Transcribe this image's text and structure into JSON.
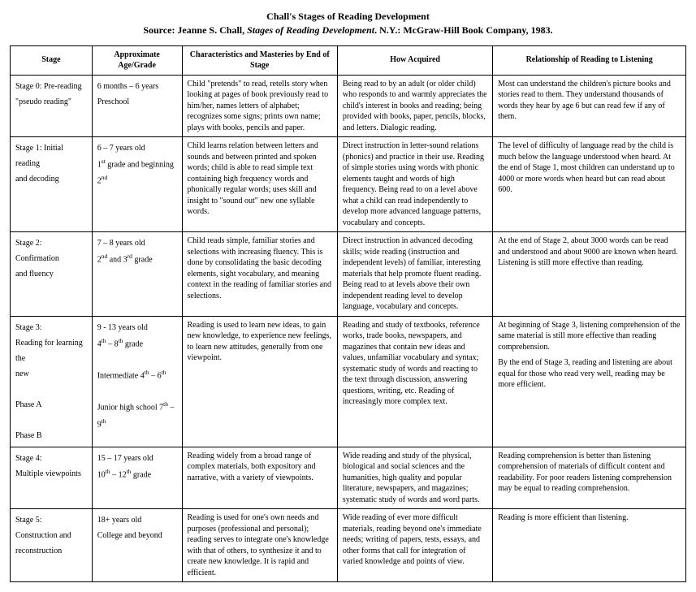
{
  "title": {
    "line1": "Chall's Stages of Reading Development",
    "line2_prefix": "Source: Jeanne S. Chall, ",
    "line2_italic": "Stages of Reading Development",
    "line2_suffix": ". N.Y.: McGraw-Hill Book Company, 1983."
  },
  "headers": {
    "stage": "Stage",
    "age": "Approximate Age/Grade",
    "characteristics": "Characteristics and Masteries by End of Stage",
    "how": "How Acquired",
    "relationship": "Relationship of Reading to Listening"
  },
  "rows": [
    {
      "stage_html": "Stage 0: Pre-reading<br>\"pseudo reading\"",
      "age_html": "6 months – 6 years<br>Preschool",
      "char": "Child \"pretends\" to read, retells story when looking at pages of book previously read to him/her, names letters of alphabet; recognizes some signs; prints own name; plays with books, pencils and paper.",
      "how": "Being read to by an adult (or older child) who responds to and warmly appreciates the child's interest in books and reading; being provided with books, paper, pencils, blocks, and letters. Dialogic reading.",
      "rel": "Most can understand the children's picture books and stories read to them. They understand thousands of words they hear by age 6 but can read few if any of them."
    },
    {
      "stage_html": "Stage 1: Initial reading<br>and decoding",
      "age_html": "6 – 7 years old<br>1<sup>st</sup> grade and beginning 2<sup>nd</sup>",
      "char": "Child learns relation between letters and sounds and between printed and spoken words; child is able to read simple text containing high frequency words and phonically regular words; uses skill and insight to \"sound out\" new one syllable words.",
      "how": "Direct instruction in letter-sound relations (phonics) and practice in their use. Reading of simple stories using words with phonic elements taught and words of high frequency. Being read to on a level above what a child can read independently to develop more advanced language patterns, vocabulary and concepts.",
      "rel": "The level of difficulty of language read by the child is much below the language understood when heard. At the end of Stage 1, most children can understand up to 4000 or more words when heard but can read about 600."
    },
    {
      "stage_html": "Stage 2: Confirmation<br>and fluency",
      "age_html": "7 – 8 years old<br>2<sup>nd</sup> and 3<sup>rd</sup> grade",
      "char": "Child reads simple, familiar stories and selections with increasing fluency. This is done by consolidating the basic decoding elements, sight vocabulary, and meaning context in the reading of familiar stories and selections.",
      "how": "Direct instruction in advanced decoding skills; wide reading (instruction and independent levels) of familiar, interesting materials that help promote fluent reading. Being read to at levels above their own independent reading level to develop language, vocabulary and concepts.",
      "rel": "At the end of Stage 2, about 3000 words can be read and understood and about 9000 are known when heard. Listening is still more effective than reading."
    },
    {
      "stage_html": "Stage 3:<br>Reading for learning the<br>new<br><br>Phase A<br><br>Phase B",
      "age_html": "9 - 13 years old<br>4<sup>th</sup> – 8<sup>th</sup> grade<br><br>Intermediate 4<sup>th</sup> – 6<sup>th</sup><br><br>Junior high school 7<sup>th</sup> – 9<sup>th</sup>",
      "char": "Reading is used to learn new ideas, to gain new knowledge, to experience new feelings, to learn new attitudes, generally from one viewpoint.",
      "how": "Reading and study of textbooks, reference works, trade books, newspapers, and magazines that contain new ideas and values, unfamiliar vocabulary and syntax; systematic study of words and reacting to the text through discussion, answering questions, writing, etc. Reading of increasingly more complex text.",
      "rel_html": "<p class=\"para-gap\">At beginning of Stage 3, listening comprehension of the same material is still more effective than reading comprehension.</p><p class=\"para-gap\">By the end of Stage 3, reading and listening are about equal for those who read very well, reading may be more efficient.</p>"
    },
    {
      "stage_html": "Stage 4:<br>Multiple viewpoints",
      "age_html": "15 – 17 years old<br>10<sup>th</sup> – 12<sup>th</sup> grade",
      "char": "Reading widely from a broad range of complex materials, both expository and narrative, with a variety of viewpoints.",
      "how": "Wide reading and study of the physical, biological and social sciences and the humanities, high quality and popular literature, newspapers, and magazines; systematic study of words and word parts.",
      "rel": "Reading comprehension is better than listening comprehension of materials of difficult content and readability. For poor readers listening comprehension may be equal to reading comprehension."
    },
    {
      "stage_html": "Stage 5:<br>Construction and<br>reconstruction",
      "age_html": "18+ years old<br>College and beyond",
      "char": "Reading is used for one's own needs and purposes (professional and personal); reading serves to integrate one's knowledge with that of others, to synthesize it and to create new knowledge. It is rapid and efficient.",
      "how": "Wide reading of ever more difficult materials, reading beyond one's immediate needs; writing of papers, tests, essays, and other forms that call for integration of varied knowledge and points of view.",
      "rel": "Reading is more efficient than listening."
    }
  ]
}
